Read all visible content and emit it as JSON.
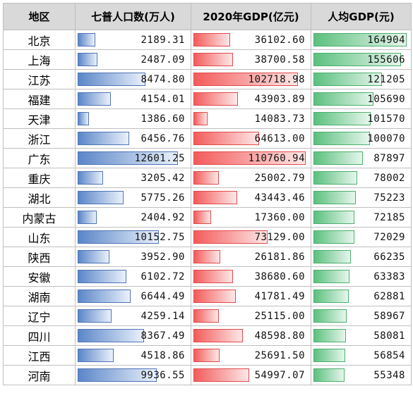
{
  "table": {
    "headers": [
      "地区",
      "七普人口数(万人)",
      "2020年GDP(亿元)",
      "人均GDP(元)"
    ],
    "scale": {
      "population_max": 14000,
      "gdp_max": 114000,
      "per_capita_max": 170000
    },
    "rows": [
      {
        "region": "北京",
        "population": "2189.31",
        "gdp": "36102.60",
        "per_capita": "164904"
      },
      {
        "region": "上海",
        "population": "2487.09",
        "gdp": "38700.58",
        "per_capita": "155606"
      },
      {
        "region": "江苏",
        "population": "8474.80",
        "gdp": "102718.98",
        "per_capita": "121205"
      },
      {
        "region": "福建",
        "population": "4154.01",
        "gdp": "43903.89",
        "per_capita": "105690"
      },
      {
        "region": "天津",
        "population": "1386.60",
        "gdp": "14083.73",
        "per_capita": "101570"
      },
      {
        "region": "浙江",
        "population": "6456.76",
        "gdp": "64613.00",
        "per_capita": "100070"
      },
      {
        "region": "广东",
        "population": "12601.25",
        "gdp": "110760.94",
        "per_capita": "87897"
      },
      {
        "region": "重庆",
        "population": "3205.42",
        "gdp": "25002.79",
        "per_capita": "78002"
      },
      {
        "region": "湖北",
        "population": "5775.26",
        "gdp": "43443.46",
        "per_capita": "75223"
      },
      {
        "region": "内蒙古",
        "population": "2404.92",
        "gdp": "17360.00",
        "per_capita": "72185"
      },
      {
        "region": "山东",
        "population": "10152.75",
        "gdp": "73129.00",
        "per_capita": "72029"
      },
      {
        "region": "陕西",
        "population": "3952.90",
        "gdp": "26181.86",
        "per_capita": "66235"
      },
      {
        "region": "安徽",
        "population": "6102.72",
        "gdp": "38680.60",
        "per_capita": "63383"
      },
      {
        "region": "湖南",
        "population": "6644.49",
        "gdp": "41781.49",
        "per_capita": "62881"
      },
      {
        "region": "辽宁",
        "population": "4259.14",
        "gdp": "25115.00",
        "per_capita": "58967"
      },
      {
        "region": "四川",
        "population": "8367.49",
        "gdp": "48598.80",
        "per_capita": "58081"
      },
      {
        "region": "江西",
        "population": "4518.86",
        "gdp": "25691.50",
        "per_capita": "56854"
      },
      {
        "region": "河南",
        "population": "9936.55",
        "gdp": "54997.07",
        "per_capita": "55348"
      }
    ]
  },
  "colors": {
    "population_bar": "#5b86c8",
    "gdp_bar": "#f35b5b",
    "per_capita_bar": "#5cc07f",
    "header_bg": "#d9d9d9"
  }
}
